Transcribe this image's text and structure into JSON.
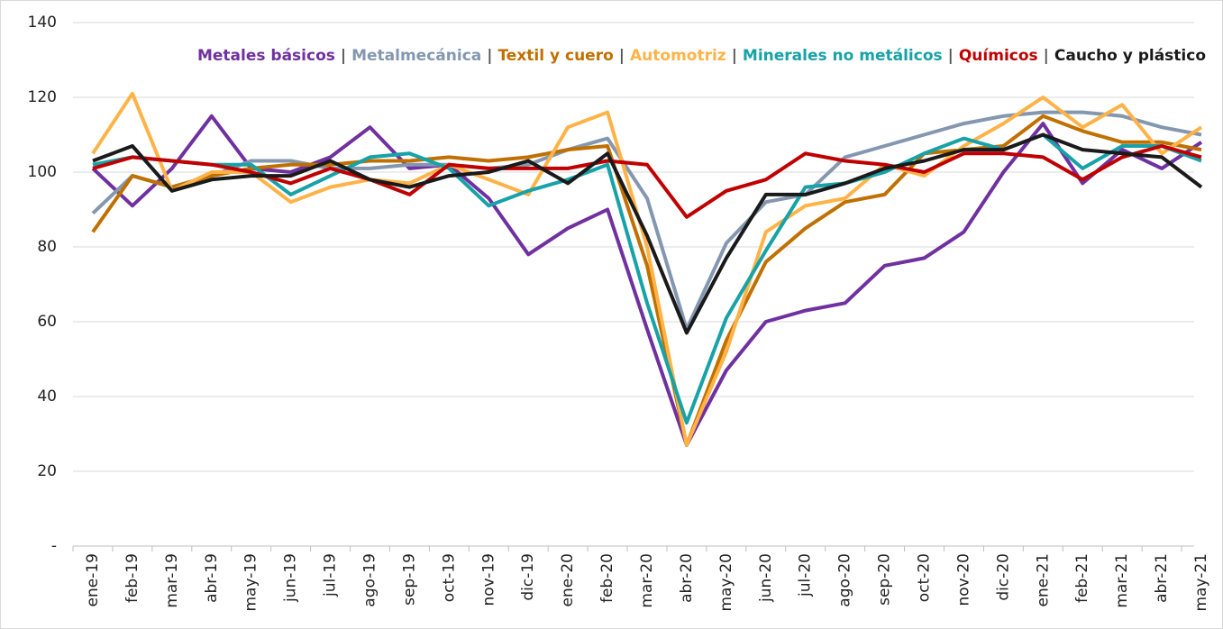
{
  "chart_data": {
    "type": "line",
    "legend_separator": "|",
    "categories": [
      "ene-19",
      "feb-19",
      "mar-19",
      "abr-19",
      "may-19",
      "jun-19",
      "jul-19",
      "ago-19",
      "sep-19",
      "oct-19",
      "nov-19",
      "dic-19",
      "ene-20",
      "feb-20",
      "mar-20",
      "abr-20",
      "may-20",
      "jun-20",
      "jul-20",
      "ago-20",
      "sep-20",
      "oct-20",
      "nov-20",
      "dic-20",
      "ene-21",
      "feb-21",
      "mar-21",
      "abr-21",
      "may-21"
    ],
    "series": [
      {
        "name": "Metales básicos",
        "color": "#7030a0",
        "values": [
          101,
          91,
          101,
          115,
          101,
          100,
          104,
          112,
          101,
          102,
          93,
          78,
          85,
          90,
          58,
          27,
          47,
          60,
          63,
          65,
          75,
          77,
          84,
          100,
          113,
          97,
          106,
          101,
          108
        ]
      },
      {
        "name": "Metalmecánica",
        "color": "#8497b0",
        "values": [
          89,
          99,
          96,
          99,
          103,
          103,
          101,
          101,
          102,
          102,
          101,
          102,
          106,
          109,
          93,
          58,
          81,
          92,
          94,
          104,
          107,
          110,
          113,
          115,
          116,
          116,
          115,
          112,
          110
        ]
      },
      {
        "name": "Textil y cuero",
        "color": "#c07000",
        "values": [
          84,
          99,
          96,
          99,
          101,
          102,
          102,
          103,
          103,
          104,
          103,
          104,
          106,
          107,
          75,
          27,
          55,
          76,
          85,
          92,
          94,
          105,
          106,
          107,
          115,
          111,
          108,
          108,
          106
        ]
      },
      {
        "name": "Automotriz",
        "color": "#ffb347",
        "values": [
          105,
          121,
          95,
          100,
          100,
          92,
          96,
          98,
          97,
          102,
          98,
          94,
          112,
          116,
          80,
          27,
          52,
          84,
          91,
          93,
          102,
          99,
          107,
          113,
          120,
          112,
          118,
          105,
          112
        ]
      },
      {
        "name": "Minerales no metálicos",
        "color": "#17a2a8",
        "values": [
          102,
          104,
          103,
          102,
          102,
          94,
          99,
          104,
          105,
          101,
          91,
          95,
          98,
          102,
          65,
          33,
          61,
          79,
          96,
          97,
          100,
          105,
          109,
          106,
          110,
          101,
          107,
          107,
          103
        ]
      },
      {
        "name": "Químicos",
        "color": "#c00000",
        "values": [
          101,
          104,
          103,
          102,
          100,
          97,
          101,
          98,
          94,
          102,
          101,
          101,
          101,
          103,
          102,
          88,
          95,
          98,
          105,
          103,
          102,
          100,
          105,
          105,
          104,
          98,
          104,
          107,
          104
        ]
      },
      {
        "name": "Caucho y plástico",
        "color": "#1a1a1a",
        "values": [
          103,
          107,
          95,
          98,
          99,
          99,
          103,
          98,
          96,
          99,
          100,
          103,
          97,
          105,
          83,
          57,
          77,
          94,
          94,
          97,
          101,
          103,
          106,
          106,
          110,
          106,
          105,
          104,
          96
        ]
      }
    ],
    "ylim": [
      0,
      140
    ],
    "yticks": [
      {
        "value": 0,
        "label": "-"
      },
      20,
      40,
      60,
      80,
      100,
      120,
      140
    ],
    "grid": true
  }
}
